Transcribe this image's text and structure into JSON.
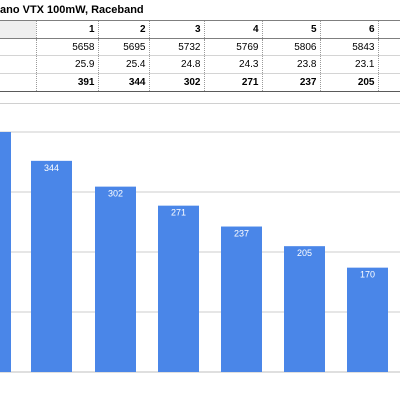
{
  "sheet": {
    "title": "ano VTX 100mW, Raceband",
    "header": [
      "",
      "1",
      "2",
      "3",
      "4",
      "5",
      "6",
      ""
    ],
    "rows": [
      [
        "",
        "5658",
        "5695",
        "5732",
        "5769",
        "5806",
        "5843",
        ""
      ],
      [
        "",
        "25.9",
        "25.4",
        "24.8",
        "24.3",
        "23.8",
        "23.1",
        ""
      ],
      [
        "",
        "391",
        "344",
        "302",
        "271",
        "237",
        "205",
        ""
      ]
    ]
  },
  "chart_data": {
    "type": "bar",
    "categories": [
      "",
      "",
      "",
      "",
      "",
      "",
      ""
    ],
    "values": [
      391,
      344,
      302,
      271,
      237,
      205,
      170
    ],
    "data_labels": [
      "",
      "344",
      "302",
      "271",
      "237",
      "205",
      "170"
    ],
    "bar_color": "#4a86e8",
    "grid": true,
    "gridline_color": "#cccccc"
  }
}
